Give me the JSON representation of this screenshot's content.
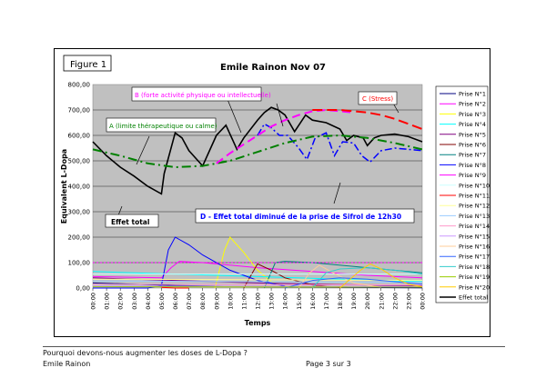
{
  "footer": {
    "question": "Pourquoi devons-nous augmenter les doses de L-Dopa ?",
    "author": "Emile Rainon",
    "page": "Page 3 sur 3"
  },
  "chart_data": {
    "type": "line",
    "figure_label": "Figure 1",
    "title": "Emile Rainon Nov 07",
    "xlabel": "Temps",
    "ylabel": "Equivalent L-Dopa",
    "ylim": [
      0,
      800
    ],
    "yticks": [
      "0,00",
      "100,00",
      "200,00",
      "300,00",
      "400,00",
      "500,00",
      "600,00",
      "700,00",
      "800,00"
    ],
    "categories": [
      "00:00",
      "01:00",
      "02:00",
      "03:00",
      "04:00",
      "05:00",
      "06:00",
      "07:00",
      "08:00",
      "09:00",
      "10:00",
      "11:00",
      "12:00",
      "13:00",
      "14:00",
      "15:00",
      "16:00",
      "17:00",
      "18:00",
      "19:00",
      "20:00",
      "21:00",
      "22:00",
      "23:00",
      "00:00"
    ],
    "grid": true,
    "legend_position": "right",
    "series": [
      {
        "name": "Prise N°1",
        "color": "#000080",
        "x": [
          0,
          6,
          12,
          24
        ],
        "y": [
          20,
          10,
          5,
          1
        ]
      },
      {
        "name": "Prise N°2",
        "color": "#ff00ff",
        "x": [
          0,
          5,
          5.7,
          6.3,
          8,
          12,
          16,
          20,
          24
        ],
        "y": [
          45,
          40,
          80,
          105,
          100,
          80,
          65,
          50,
          40
        ]
      },
      {
        "name": "Prise N°3",
        "color": "#ffff00",
        "x": [
          8.9,
          9.6,
          10,
          11,
          12,
          13,
          14
        ],
        "y": [
          0,
          150,
          200,
          140,
          70,
          25,
          5
        ]
      },
      {
        "name": "Prise N°4",
        "color": "#00ffff",
        "x": [
          0,
          6,
          12,
          18,
          24
        ],
        "y": [
          65,
          55,
          45,
          35,
          25
        ]
      },
      {
        "name": "Prise N°5",
        "color": "#800080",
        "x": [
          0,
          6,
          12,
          24
        ],
        "y": [
          40,
          30,
          20,
          8
        ]
      },
      {
        "name": "Prise N°6",
        "color": "#800000",
        "x": [
          11,
          12,
          13,
          14,
          16,
          18
        ],
        "y": [
          0,
          95,
          70,
          40,
          12,
          3
        ]
      },
      {
        "name": "Prise N°7",
        "color": "#008080",
        "x": [
          12.5,
          13.3,
          14,
          16,
          20,
          24
        ],
        "y": [
          0,
          100,
          105,
          100,
          80,
          60
        ]
      },
      {
        "name": "Prise N°8",
        "color": "#0000ff",
        "x": [
          0,
          4,
          5,
          5.5,
          6,
          7,
          8,
          10,
          12,
          14
        ],
        "y": [
          0,
          0,
          10,
          150,
          200,
          170,
          130,
          70,
          30,
          8
        ]
      },
      {
        "name": "Prise N°10",
        "color": "#ccffff",
        "x": [
          0,
          24
        ],
        "y": [
          55,
          55
        ]
      },
      {
        "name": "Prise N°12",
        "color": "#ffff99",
        "x": [
          0,
          24
        ],
        "y": [
          35,
          30
        ]
      },
      {
        "name": "Prise N°13",
        "color": "#99ccff",
        "x": [
          0,
          24
        ],
        "y": [
          28,
          22
        ]
      },
      {
        "name": "Prise N°14",
        "color": "#ff99cc",
        "x": [
          0,
          24
        ],
        "y": [
          15,
          12
        ]
      },
      {
        "name": "Prise N°15",
        "color": "#cc99ff",
        "x": [
          0,
          24
        ],
        "y": [
          8,
          6
        ]
      },
      {
        "name": "Prise N°16",
        "color": "#ffcc99",
        "x": [
          15,
          15.8,
          16.5,
          17.5,
          19,
          21
        ],
        "y": [
          0,
          60,
          90,
          60,
          20,
          3
        ]
      },
      {
        "name": "Prise N°17",
        "color": "#3366ff",
        "x": [
          14,
          16,
          18,
          20,
          22,
          24
        ],
        "y": [
          0,
          30,
          40,
          35,
          25,
          15
        ]
      },
      {
        "name": "Prise N°18",
        "color": "#33cccc",
        "x": [
          16,
          17,
          18,
          20,
          22,
          24
        ],
        "y": [
          0,
          60,
          75,
          80,
          70,
          55
        ]
      },
      {
        "name": "Prise N°19",
        "color": "#99cc00",
        "x": [
          0,
          24
        ],
        "y": [
          5,
          4
        ]
      },
      {
        "name": "Prise N°20",
        "color": "#ffcc00",
        "x": [
          18,
          19.5,
          20.2,
          21,
          22,
          23,
          24
        ],
        "y": [
          0,
          70,
          95,
          75,
          40,
          15,
          5
        ]
      },
      {
        "name": "Prise N°9",
        "color": "#ff00ff",
        "dash": "2,2",
        "x": [
          0,
          12,
          24
        ],
        "y": [
          100,
          100,
          100
        ]
      },
      {
        "name": "Prise N°11",
        "color": "#ff0000",
        "x": [
          5,
          6,
          7
        ],
        "y": [
          3,
          0,
          0
        ]
      },
      {
        "name": "Effet total",
        "color": "#000000",
        "width": 1.6,
        "x": [
          0,
          1,
          2,
          3,
          4,
          5,
          5.2,
          6,
          6.5,
          7,
          8,
          9,
          9.7,
          10.5,
          11,
          12,
          12.5,
          13,
          13.5,
          14,
          14.7,
          15.5,
          16,
          17,
          18,
          18.5,
          19,
          19.7,
          20,
          20.5,
          21,
          22,
          23,
          24
        ],
        "y": [
          575,
          520,
          475,
          440,
          400,
          370,
          450,
          610,
          590,
          540,
          480,
          600,
          640,
          545,
          590,
          660,
          690,
          710,
          700,
          680,
          615,
          680,
          660,
          650,
          625,
          580,
          600,
          590,
          560,
          590,
          600,
          605,
          595,
          575
        ]
      },
      {
        "name": "Effet total diminué",
        "color": "#0000ff",
        "dash": "8,3,2,3",
        "width": 1.5,
        "x": [
          12,
          12.5,
          13,
          13.6,
          14.2,
          15,
          15.6,
          16.2,
          17,
          17.6,
          18.2,
          19,
          19.6,
          20.2,
          21,
          22,
          23,
          24
        ],
        "y": [
          600,
          645,
          630,
          600,
          600,
          550,
          505,
          590,
          610,
          520,
          575,
          570,
          520,
          495,
          540,
          550,
          545,
          540
        ]
      }
    ],
    "curves": [
      {
        "name": "A (limite thérapeutique ou calme)",
        "color": "#008000",
        "dash": "10,4,2,4",
        "x": [
          0,
          2,
          4,
          6,
          8,
          10,
          12,
          14,
          16,
          18,
          20,
          22,
          24
        ],
        "y": [
          545,
          520,
          490,
          475,
          480,
          500,
          535,
          570,
          595,
          600,
          590,
          570,
          545
        ]
      },
      {
        "name": "B (forte activité physique ou intellectuelle)",
        "color": "#ff00ff",
        "dash": "9,5",
        "x": [
          9,
          10,
          11,
          12,
          13,
          14,
          15,
          16,
          17,
          18,
          19
        ],
        "y": [
          490,
          530,
          565,
          600,
          635,
          660,
          680,
          695,
          700,
          695,
          690
        ]
      },
      {
        "name": "C (Stress)",
        "color": "#ff0000",
        "dash": "11,5",
        "x": [
          16,
          17,
          18,
          19,
          20,
          21,
          22,
          23,
          24
        ],
        "y": [
          700,
          700,
          700,
          695,
          690,
          680,
          665,
          645,
          625
        ]
      }
    ],
    "annotations": [
      {
        "text": "B (forte activité physique ou intellectuelle)",
        "color": "#ff00ff"
      },
      {
        "text": "C (Stress)",
        "color": "#ff0000"
      },
      {
        "text": "A (limite thérapeutique ou calme)",
        "color": "#008000"
      },
      {
        "text": "Effet total",
        "color": "#000000"
      },
      {
        "text": "D - Effet total diminué de la prise de Sifrol de 12h30",
        "color": "#0000ff"
      }
    ]
  }
}
